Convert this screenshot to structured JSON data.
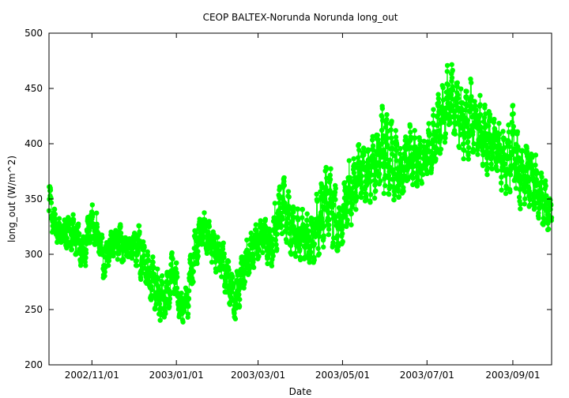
{
  "chart_data": {
    "type": "scatter",
    "title": "CEOP BALTEX-Norunda Norunda  long_out",
    "xlabel": "Date",
    "ylabel": "long_out (W/m^2)",
    "x_axis": {
      "type": "date",
      "range": [
        "2002-10-01",
        "2003-09-29"
      ],
      "ticks": [
        "2002-11-01",
        "2003-01-01",
        "2003-03-01",
        "2003-05-01",
        "2003-07-01",
        "2003-09-01"
      ],
      "tick_labels": [
        "2002/11/01",
        "2003/01/01",
        "2003/03/01",
        "2003/05/01",
        "2003/07/01",
        "2003/09/01"
      ]
    },
    "y_axis": {
      "range": [
        200,
        500
      ],
      "ticks": [
        200,
        250,
        300,
        350,
        400,
        450,
        500
      ],
      "tick_labels": [
        "200",
        "250",
        "300",
        "350",
        "400",
        "450",
        "500"
      ]
    },
    "grid": false,
    "series_color": "#00ff00",
    "series": [
      {
        "name": "",
        "x": [
          "2002-10-01",
          "2002-10-06",
          "2002-10-11",
          "2002-10-16",
          "2002-10-21",
          "2002-10-26",
          "2002-10-31",
          "2002-11-05",
          "2002-11-10",
          "2002-11-15",
          "2002-11-20",
          "2002-11-25",
          "2002-11-30",
          "2002-12-05",
          "2002-12-10",
          "2002-12-15",
          "2002-12-20",
          "2002-12-25",
          "2002-12-30",
          "2003-01-04",
          "2003-01-09",
          "2003-01-14",
          "2003-01-19",
          "2003-01-24",
          "2003-01-29",
          "2003-02-03",
          "2003-02-08",
          "2003-02-13",
          "2003-02-18",
          "2003-02-23",
          "2003-02-28",
          "2003-03-05",
          "2003-03-10",
          "2003-03-15",
          "2003-03-20",
          "2003-03-25",
          "2003-03-30",
          "2003-04-04",
          "2003-04-09",
          "2003-04-14",
          "2003-04-19",
          "2003-04-24",
          "2003-04-29",
          "2003-05-04",
          "2003-05-09",
          "2003-05-14",
          "2003-05-19",
          "2003-05-24",
          "2003-05-29",
          "2003-06-03",
          "2003-06-08",
          "2003-06-13",
          "2003-06-18",
          "2003-06-23",
          "2003-06-28",
          "2003-07-03",
          "2003-07-08",
          "2003-07-13",
          "2003-07-18",
          "2003-07-23",
          "2003-07-28",
          "2003-08-02",
          "2003-08-07",
          "2003-08-12",
          "2003-08-17",
          "2003-08-22",
          "2003-08-27",
          "2003-09-01",
          "2003-09-06",
          "2003-09-11",
          "2003-09-16",
          "2003-09-21",
          "2003-09-26",
          "2003-09-29"
        ],
        "y": [
          350,
          322,
          318,
          322,
          315,
          298,
          330,
          318,
          290,
          310,
          312,
          305,
          308,
          300,
          290,
          275,
          258,
          262,
          288,
          250,
          260,
          300,
          325,
          315,
          305,
          295,
          275,
          258,
          285,
          300,
          310,
          318,
          305,
          330,
          345,
          320,
          318,
          315,
          310,
          328,
          355,
          340,
          320,
          350,
          360,
          375,
          370,
          380,
          395,
          390,
          378,
          372,
          390,
          385,
          382,
          395,
          410,
          430,
          440,
          428,
          420,
          425,
          415,
          405,
          400,
          390,
          378,
          395,
          372,
          375,
          368,
          355,
          340,
          335
        ],
        "lower": [
          325,
          312,
          305,
          300,
          300,
          280,
          315,
          305,
          270,
          300,
          295,
          290,
          295,
          280,
          270,
          255,
          240,
          245,
          265,
          238,
          240,
          280,
          300,
          300,
          285,
          270,
          255,
          240,
          265,
          280,
          290,
          300,
          285,
          300,
          310,
          300,
          295,
          295,
          290,
          295,
          310,
          300,
          305,
          320,
          330,
          345,
          345,
          350,
          355,
          355,
          348,
          355,
          365,
          360,
          365,
          370,
          380,
          395,
          400,
          395,
          385,
          385,
          375,
          370,
          370,
          362,
          345,
          335,
          340,
          345,
          340,
          330,
          322,
          325
        ],
        "upper": [
          372,
          340,
          335,
          340,
          340,
          320,
          352,
          345,
          312,
          325,
          335,
          328,
          320,
          345,
          318,
          310,
          290,
          290,
          310,
          275,
          290,
          325,
          340,
          335,
          328,
          320,
          305,
          290,
          315,
          320,
          330,
          340,
          335,
          365,
          375,
          358,
          350,
          345,
          350,
          370,
          400,
          380,
          365,
          390,
          400,
          408,
          405,
          420,
          440,
          455,
          430,
          410,
          425,
          420,
          410,
          425,
          445,
          470,
          478,
          470,
          460,
          465,
          445,
          440,
          430,
          425,
          415,
          435,
          412,
          420,
          400,
          395,
          385,
          355
        ]
      }
    ]
  }
}
